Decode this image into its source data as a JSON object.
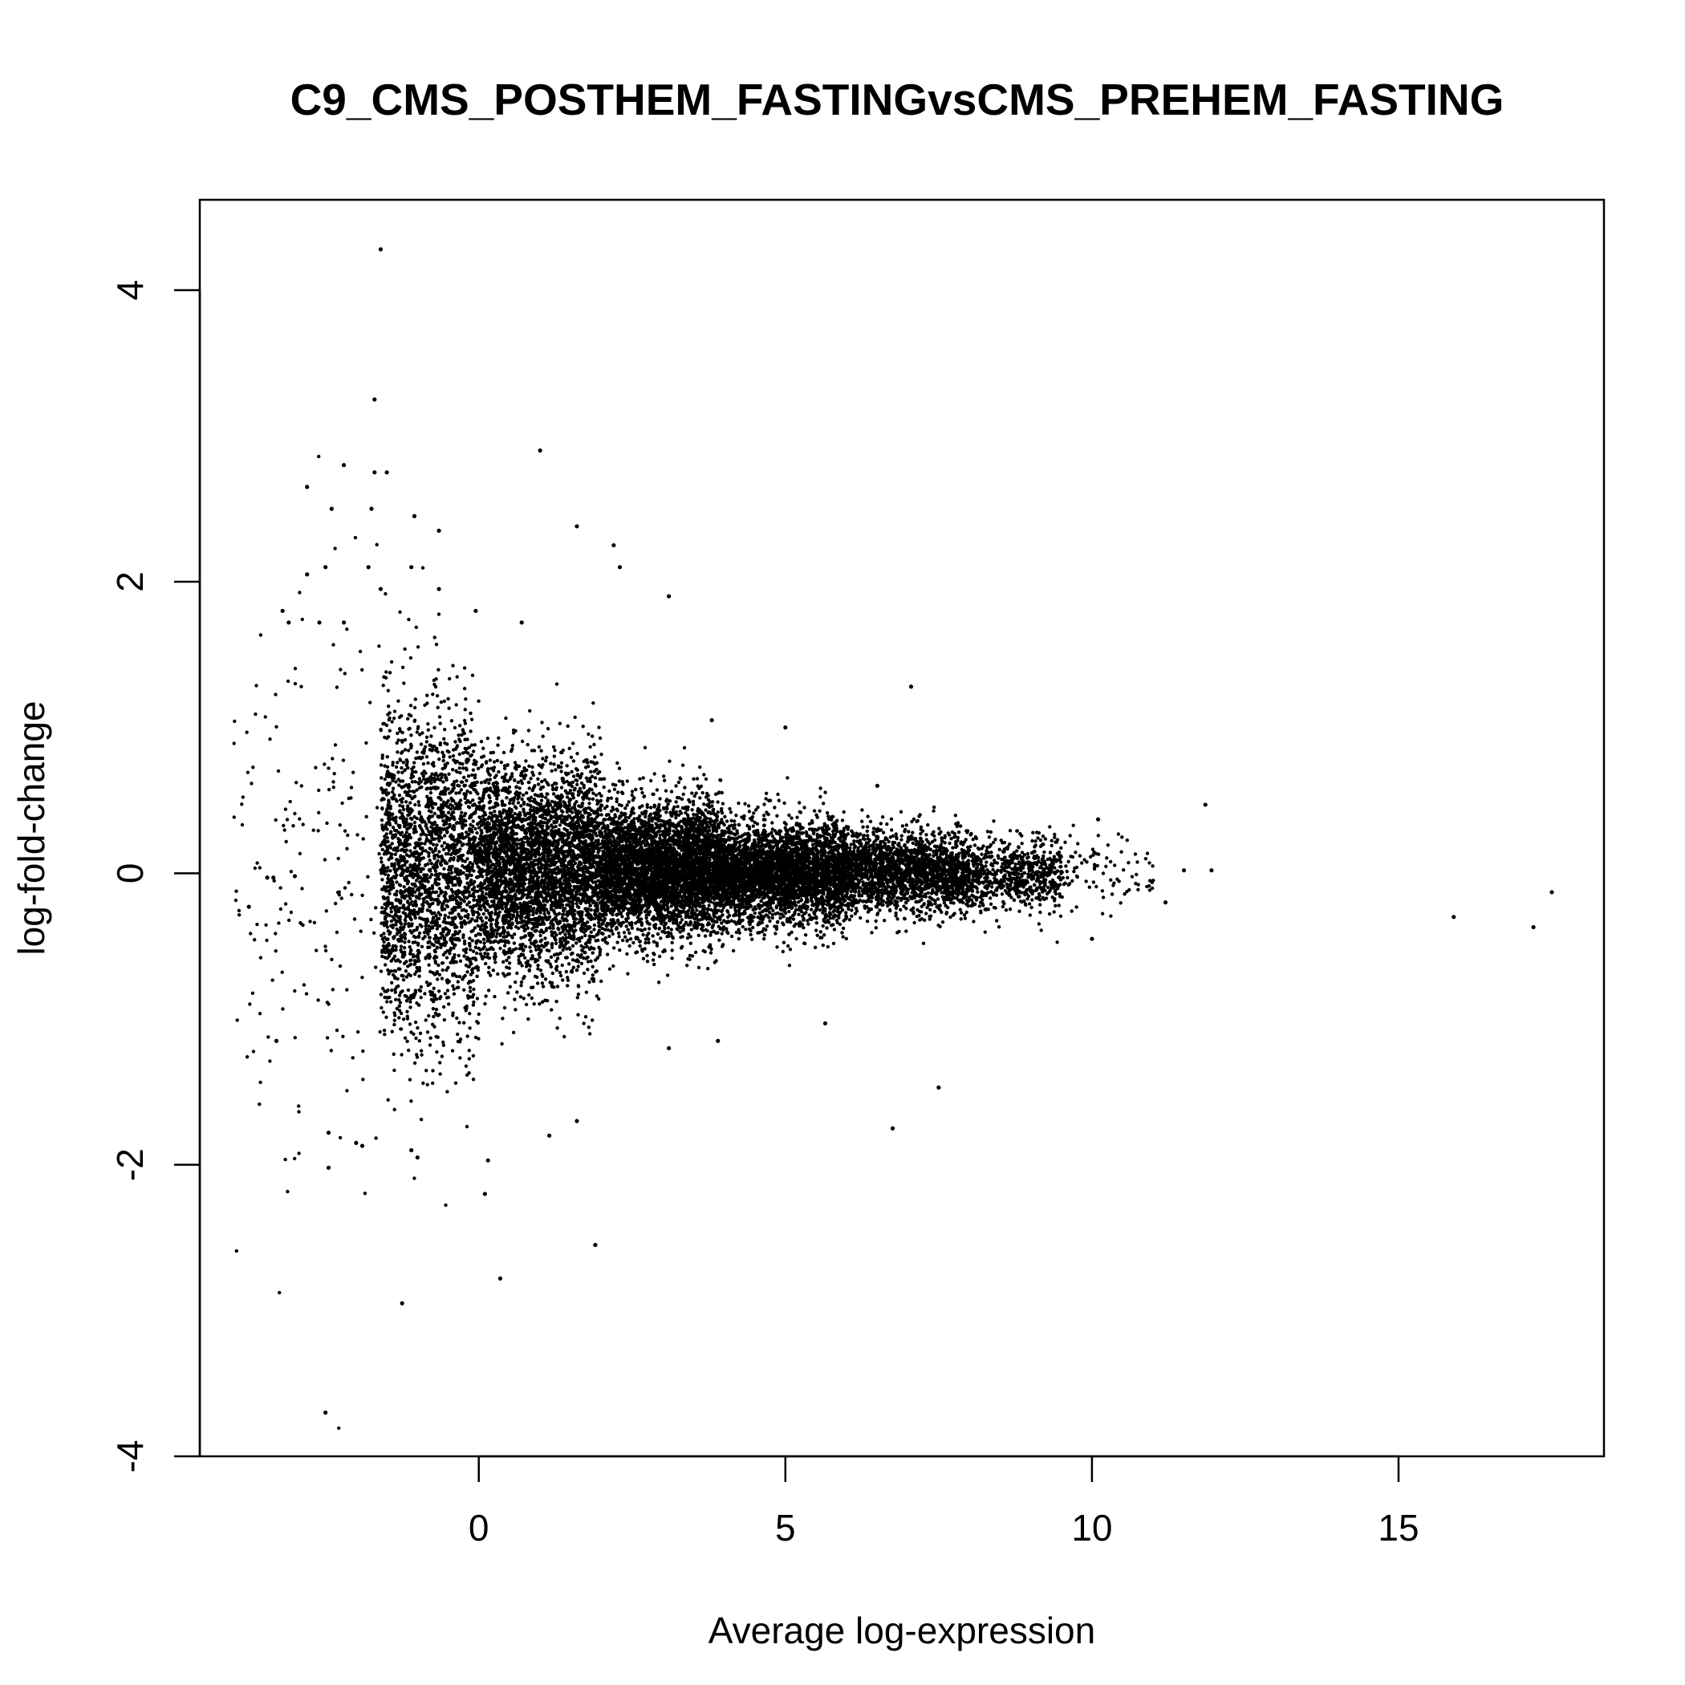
{
  "chart_data": {
    "type": "scatter",
    "title": "C9_CMS_POSTHEM_FASTINGvsCMS_PREHEM_FASTING",
    "xlabel": "Average log-expression",
    "ylabel": "log-fold-change",
    "xlim": [
      -4.55,
      18.35
    ],
    "ylim": [
      -4.0,
      4.62
    ],
    "x_ticks": [
      0,
      5,
      10,
      15
    ],
    "x_tick_labels": [
      "0",
      "5",
      "10",
      "15"
    ],
    "y_ticks": [
      -4,
      -2,
      0,
      2,
      4
    ],
    "y_tick_labels": [
      "-4",
      "-2",
      "0",
      "2",
      "4"
    ],
    "grid": false,
    "legend": "none",
    "point_color": "#000000",
    "notable_points": [
      {
        "x": -1.6,
        "y": 4.28
      },
      {
        "x": -1.7,
        "y": 3.25
      },
      {
        "x": 1.0,
        "y": 2.9
      },
      {
        "x": -2.2,
        "y": 2.8
      },
      {
        "x": -1.7,
        "y": 2.75
      },
      {
        "x": -1.5,
        "y": 2.75
      },
      {
        "x": -2.8,
        "y": 2.65
      },
      {
        "x": -2.4,
        "y": 2.5
      },
      {
        "x": -1.75,
        "y": 2.5
      },
      {
        "x": -1.05,
        "y": 2.45
      },
      {
        "x": 1.6,
        "y": 2.38
      },
      {
        "x": -0.65,
        "y": 2.35
      },
      {
        "x": 2.2,
        "y": 2.25
      },
      {
        "x": -2.5,
        "y": 2.1
      },
      {
        "x": -1.8,
        "y": 2.1
      },
      {
        "x": -1.1,
        "y": 2.1
      },
      {
        "x": 2.3,
        "y": 2.1
      },
      {
        "x": -2.8,
        "y": 2.05
      },
      {
        "x": -1.6,
        "y": 1.95
      },
      {
        "x": -0.65,
        "y": 1.95
      },
      {
        "x": 3.1,
        "y": 1.9
      },
      {
        "x": -3.2,
        "y": 1.8
      },
      {
        "x": -3.1,
        "y": 1.72
      },
      {
        "x": -2.6,
        "y": 1.72
      },
      {
        "x": -2.2,
        "y": 1.72
      },
      {
        "x": -0.05,
        "y": 1.8
      },
      {
        "x": 0.7,
        "y": 1.72
      },
      {
        "x": 7.05,
        "y": 1.28
      },
      {
        "x": 3.8,
        "y": 1.05
      },
      {
        "x": 5.0,
        "y": 1.0
      },
      {
        "x": 11.85,
        "y": 0.47
      },
      {
        "x": 10.1,
        "y": 0.37
      },
      {
        "x": 6.5,
        "y": 0.6
      },
      {
        "x": 11.5,
        "y": 0.02
      },
      {
        "x": 11.95,
        "y": 0.02
      },
      {
        "x": 11.2,
        "y": -0.2
      },
      {
        "x": 10.0,
        "y": -0.45
      },
      {
        "x": 15.9,
        "y": -0.3
      },
      {
        "x": 17.2,
        "y": -0.37
      },
      {
        "x": 17.5,
        "y": -0.13
      },
      {
        "x": -3.75,
        "y": -0.23
      },
      {
        "x": -3.45,
        "y": -0.03
      },
      {
        "x": -3.35,
        "y": -0.03
      },
      {
        "x": -3.0,
        "y": -0.02
      },
      {
        "x": -3.3,
        "y": -1.15
      },
      {
        "x": 5.65,
        "y": -1.03
      },
      {
        "x": 3.1,
        "y": -1.2
      },
      {
        "x": 3.9,
        "y": -1.15
      },
      {
        "x": 7.5,
        "y": -1.47
      },
      {
        "x": 6.75,
        "y": -1.75
      },
      {
        "x": 1.6,
        "y": -1.7
      },
      {
        "x": 1.15,
        "y": -1.8
      },
      {
        "x": -2.45,
        "y": -1.78
      },
      {
        "x": -2.45,
        "y": -2.02
      },
      {
        "x": -2.0,
        "y": -1.85
      },
      {
        "x": -1.9,
        "y": -1.87
      },
      {
        "x": -1.1,
        "y": -1.9
      },
      {
        "x": -1.0,
        "y": -1.95
      },
      {
        "x": 0.15,
        "y": -1.97
      },
      {
        "x": 0.1,
        "y": -2.2
      },
      {
        "x": 1.9,
        "y": -2.55
      },
      {
        "x": 0.35,
        "y": -2.78
      },
      {
        "x": -1.25,
        "y": -2.95
      },
      {
        "x": -2.5,
        "y": -3.7
      }
    ],
    "point_density_profile": [
      {
        "x_range": [
          -4.0,
          -1.6
        ],
        "approx_points": 180,
        "y_sd": 0.95
      },
      {
        "x_range": [
          -1.6,
          0.0
        ],
        "approx_points": 2200,
        "y_sd": 0.55
      },
      {
        "x_range": [
          0.0,
          2.0
        ],
        "approx_points": 3600,
        "y_sd": 0.35
      },
      {
        "x_range": [
          2.0,
          4.0
        ],
        "approx_points": 4200,
        "y_sd": 0.22
      },
      {
        "x_range": [
          4.0,
          6.0
        ],
        "approx_points": 3400,
        "y_sd": 0.17
      },
      {
        "x_range": [
          6.0,
          8.0
        ],
        "approx_points": 2000,
        "y_sd": 0.14
      },
      {
        "x_range": [
          8.0,
          9.5
        ],
        "approx_points": 700,
        "y_sd": 0.13
      },
      {
        "x_range": [
          9.5,
          11.0
        ],
        "approx_points": 90,
        "y_sd": 0.13
      }
    ]
  }
}
